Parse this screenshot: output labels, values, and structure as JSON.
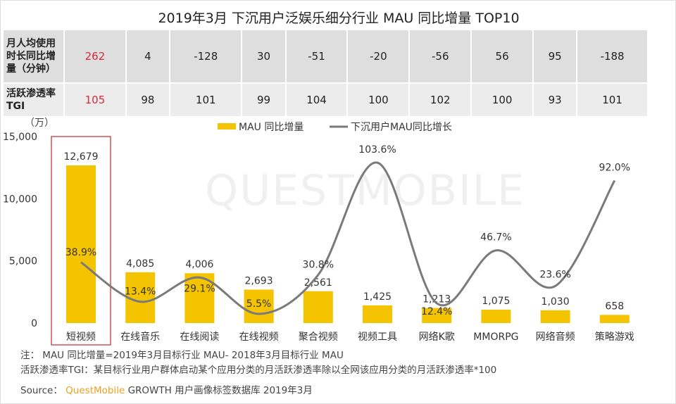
{
  "title": "2019年3月 下沉用户泛娱乐细分行业 MAU 同比增量 TOP10",
  "table": {
    "rows": [
      {
        "label": "月人均使用时长同比增量（分钟）",
        "values": [
          "262",
          "4",
          "-128",
          "30",
          "-51",
          "-20",
          "-56",
          "56",
          "95",
          "-188"
        ]
      },
      {
        "label": "活跃渗透率TGI",
        "values": [
          "105",
          "98",
          "101",
          "99",
          "104",
          "100",
          "102",
          "100",
          "93",
          "101"
        ]
      }
    ]
  },
  "watermark": "QUESTMOBILE",
  "chart_data": {
    "type": "bar+line",
    "title": "2019年3月 下沉用户泛娱乐细分行业 MAU 同比增量 TOP10",
    "ylabel": "（万）",
    "ylim": [
      0,
      15000
    ],
    "yticks": [
      "0",
      "5,000",
      "10,000",
      "15,000"
    ],
    "ytick_values": [
      0,
      5000,
      10000,
      15000
    ],
    "grid": false,
    "legend_position": "top-center",
    "categories": [
      "短视频",
      "在线音乐",
      "在线阅读",
      "在线视频",
      "聚合视频",
      "视频工具",
      "网络K歌",
      "MMORPG",
      "网络音频",
      "策略游戏"
    ],
    "series": [
      {
        "name": "MAU 同比增量",
        "type": "bar",
        "color": "#f5c400",
        "values": [
          12679,
          4085,
          4006,
          2693,
          2561,
          1425,
          1213,
          1075,
          1030,
          658
        ],
        "labels": [
          "12,679",
          "4,085",
          "4,006",
          "2,693",
          "2,561",
          "1,425",
          "1,213",
          "1,075",
          "1,030",
          "658"
        ]
      },
      {
        "name": "下沉用户MAU同比增长",
        "type": "line",
        "color": "#7a7a7a",
        "values": [
          38.9,
          13.4,
          29.1,
          5.5,
          30.8,
          103.6,
          12.4,
          46.7,
          23.6,
          92.0
        ],
        "labels": [
          "38.9%",
          "13.4%",
          "29.1%",
          "5.5%",
          "30.8%",
          "103.6%",
          "12.4%",
          "46.7%",
          "23.6%",
          "92.0%"
        ]
      }
    ],
    "highlight_category": "短视频",
    "highlight_color": "#c0272d"
  },
  "notes": [
    "注： MAU 同比增量=2019年3月目标行业 MAU- 2018年3月目标行业 MAU",
    "活跃渗透率TGI：某目标行业用户群体启动某个应用分类的月活跃渗透率除以全网该应用分类的月活跃渗透率*100"
  ],
  "source": {
    "label": "Source：",
    "brand": "QuestMobile",
    "text": "GROWTH 用户画像标签数据库 2019年3月"
  }
}
